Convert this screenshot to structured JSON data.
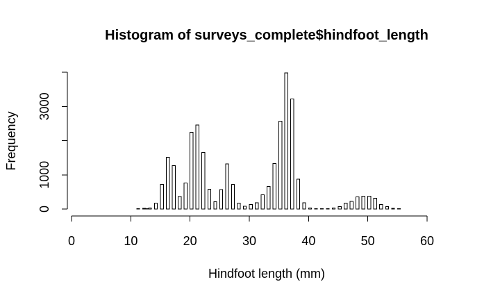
{
  "chart_data": {
    "type": "bar",
    "subtype": "histogram",
    "title": "Histogram of surveys_complete$hindfoot_length",
    "xlabel": "Hindfoot length (mm)",
    "ylabel": "Frequency",
    "bin_width": 0.5,
    "bin_start": 2,
    "xlim": [
      0,
      64
    ],
    "ylim": [
      0,
      4000
    ],
    "xticks": [
      0,
      10,
      20,
      30,
      40,
      50,
      60
    ],
    "yticks": [
      0,
      1000,
      2000,
      3000,
      4000
    ],
    "ytick_labels": [
      "0",
      "1000",
      "",
      "3000",
      ""
    ],
    "values": [
      0,
      0,
      0,
      0,
      0,
      0,
      0,
      0,
      0,
      0,
      0,
      0,
      0,
      0,
      0,
      0,
      0,
      0,
      10,
      0,
      20,
      10,
      30,
      0,
      170,
      0,
      720,
      0,
      1510,
      0,
      1270,
      0,
      370,
      0,
      760,
      0,
      2240,
      0,
      2460,
      0,
      1660,
      0,
      580,
      0,
      210,
      0,
      570,
      0,
      1320,
      0,
      720,
      0,
      170,
      0,
      80,
      0,
      130,
      0,
      180,
      0,
      420,
      0,
      660,
      0,
      1330,
      0,
      2570,
      0,
      3980,
      0,
      3220,
      0,
      870,
      0,
      180,
      0,
      30,
      0,
      10,
      0,
      10,
      0,
      10,
      0,
      30,
      0,
      70,
      0,
      170,
      0,
      220,
      0,
      360,
      0,
      380,
      0,
      380,
      0,
      310,
      0,
      130,
      0,
      70,
      0,
      20,
      0,
      10,
      0,
      0,
      0,
      0,
      0,
      0,
      0,
      0,
      0,
      0,
      0,
      0
    ],
    "grid": false,
    "legend": "none"
  }
}
